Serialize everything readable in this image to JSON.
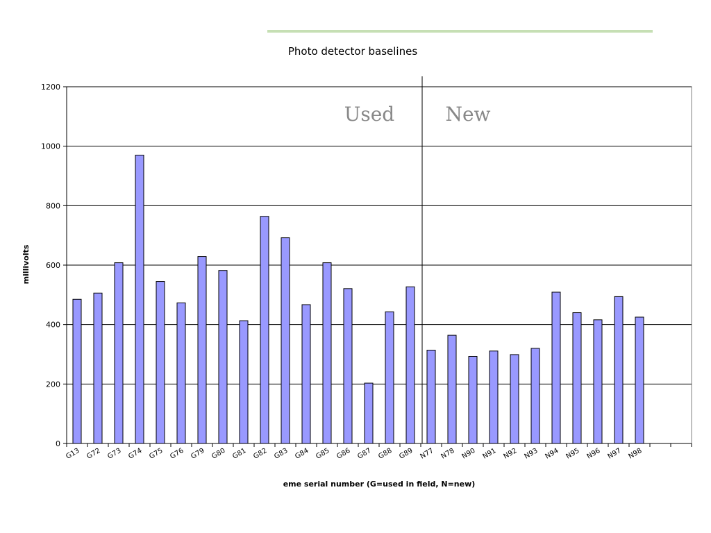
{
  "chart_data": {
    "type": "bar",
    "title": "Photo detector baselines",
    "xlabel": "eme serial number (G=used in field, N=new)",
    "ylabel": "millivolts",
    "ylim": [
      0,
      1200
    ],
    "yticks": [
      0,
      200,
      400,
      600,
      800,
      1000,
      1200
    ],
    "grid": true,
    "legend": "none",
    "bar_color": "#9999ff",
    "categories": [
      "G13",
      "G72",
      "G73",
      "G74",
      "G75",
      "G76",
      "G79",
      "G80",
      "G81",
      "G82",
      "G83",
      "G84",
      "G85",
      "G86",
      "G87",
      "G88",
      "G89",
      "N77",
      "N78",
      "N90",
      "N91",
      "N92",
      "N93",
      "N94",
      "N95",
      "N96",
      "N97",
      "N98"
    ],
    "values": [
      485,
      506,
      608,
      970,
      545,
      473,
      629,
      582,
      413,
      764,
      692,
      467,
      608,
      521,
      203,
      443,
      527,
      314,
      364,
      293,
      311,
      299,
      320,
      509,
      440,
      416,
      494,
      425
    ],
    "annotations": [
      {
        "text": "Used"
      },
      {
        "text": "New"
      }
    ]
  }
}
